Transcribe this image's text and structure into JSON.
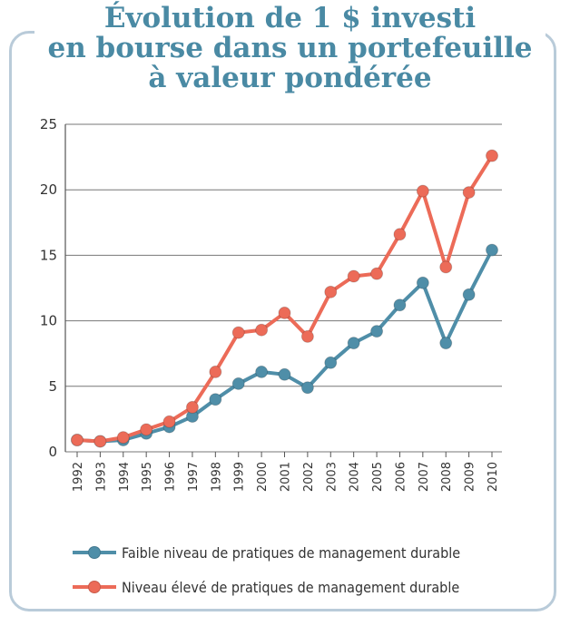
{
  "title": {
    "line1": "Évolution de 1 $ investi",
    "line2": "en bourse dans un portefeuille",
    "line3": "à valeur pondérée"
  },
  "colors": {
    "title": "#4a8aa4",
    "series_low": "#4f8ea8",
    "series_high": "#ec6b58",
    "grid": "#777777"
  },
  "chart_data": {
    "type": "line",
    "title": "Évolution de 1 $ investi en bourse dans un portefeuille à valeur pondérée",
    "x": [
      "1992",
      "1993",
      "1994",
      "1995",
      "1996",
      "1997",
      "1998",
      "1999",
      "2000",
      "2001",
      "2002",
      "2003",
      "2004",
      "2005",
      "2006",
      "2007",
      "2008",
      "2009",
      "2010"
    ],
    "ylim": [
      0,
      25
    ],
    "yticks": [
      0,
      5,
      10,
      15,
      20,
      25
    ],
    "grid": true,
    "legend": "bottom",
    "series": [
      {
        "name": "Faible niveau de pratiques de management durable",
        "color": "#4f8ea8",
        "values": [
          0.9,
          0.8,
          0.9,
          1.4,
          1.9,
          2.7,
          4.0,
          5.2,
          6.1,
          5.9,
          4.9,
          6.8,
          8.3,
          9.2,
          11.2,
          12.9,
          8.3,
          12.0,
          15.4
        ]
      },
      {
        "name": "Niveau élevé de pratiques de management durable",
        "color": "#ec6b58",
        "values": [
          0.9,
          0.8,
          1.1,
          1.7,
          2.3,
          3.4,
          6.1,
          9.1,
          9.3,
          10.6,
          8.8,
          12.2,
          13.4,
          13.6,
          16.6,
          19.9,
          14.1,
          19.8,
          22.6
        ]
      }
    ]
  }
}
